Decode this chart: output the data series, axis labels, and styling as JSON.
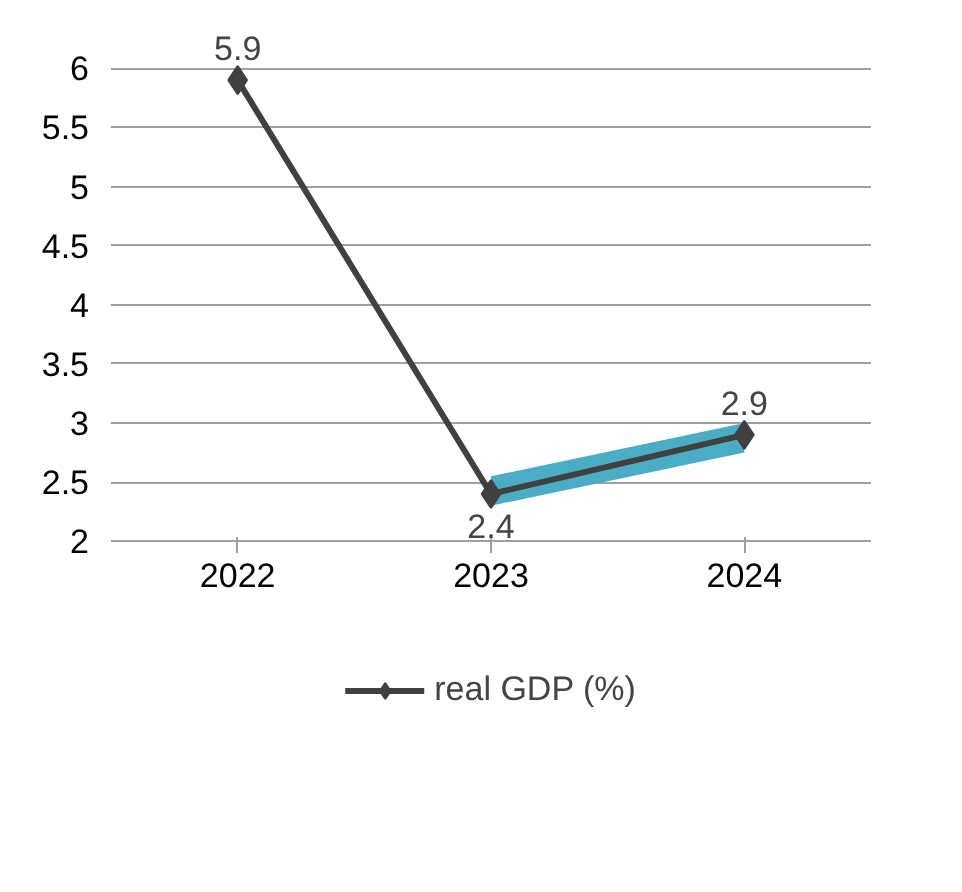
{
  "chart_data": {
    "type": "line",
    "categories": [
      "2022",
      "2023",
      "2024"
    ],
    "series": [
      {
        "name": "real GDP (%)",
        "color": "#404040",
        "values": [
          5.9,
          2.4,
          2.9
        ],
        "lower": [
          null,
          2.3,
          2.75
        ],
        "upper": [
          null,
          2.55,
          3.0
        ]
      }
    ],
    "ylim": [
      2,
      6
    ],
    "yticks": [
      2,
      2.5,
      3,
      3.5,
      4,
      4.5,
      5,
      5.5,
      6
    ],
    "grid": "y",
    "legend": "bottom",
    "marker": "diamond",
    "line_style": "solid",
    "data_labels": true
  }
}
